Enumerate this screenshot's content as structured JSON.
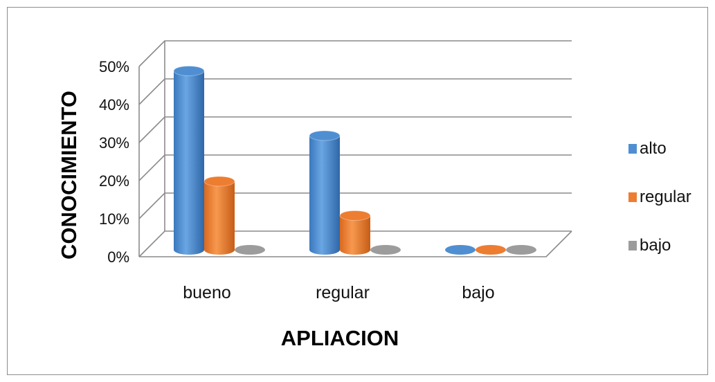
{
  "chart_data": {
    "type": "bar",
    "variant": "3d-cylinder",
    "title": "",
    "xlabel": "APLIACION",
    "ylabel": "CONOCIMIENTO",
    "categories": [
      "bueno",
      "regular",
      "bajo"
    ],
    "series": [
      {
        "name": "alto",
        "values": [
          47,
          30,
          0
        ],
        "color": "#4f8fd1"
      },
      {
        "name": "regular",
        "values": [
          18,
          9,
          0
        ],
        "color": "#ed7d31"
      },
      {
        "name": "bajo",
        "values": [
          0,
          0,
          0
        ],
        "color": "#9c9c9c"
      }
    ],
    "yticks": [
      "0%",
      "10%",
      "20%",
      "30%",
      "40%",
      "50%"
    ],
    "ylim": [
      0,
      50
    ],
    "grid": true,
    "legend": "right"
  }
}
